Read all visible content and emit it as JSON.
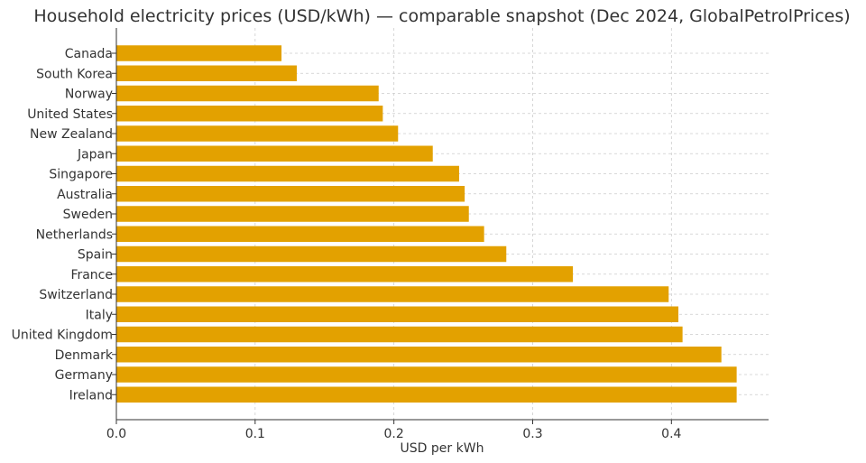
{
  "chart_data": {
    "type": "bar",
    "orientation": "horizontal",
    "title": "Household electricity prices (USD/kWh) — comparable snapshot (Dec 2024, GlobalPetrolPrices)",
    "xlabel": "USD per kWh",
    "ylabel": "",
    "xlim": [
      0,
      0.47
    ],
    "xticks": [
      0.0,
      0.1,
      0.2,
      0.3,
      0.4
    ],
    "xtick_labels": [
      "0.0",
      "0.1",
      "0.2",
      "0.3",
      "0.4"
    ],
    "grid": true,
    "bar_color": "#E3A100",
    "categories": [
      "Canada",
      "South Korea",
      "Norway",
      "United States",
      "New Zealand",
      "Japan",
      "Singapore",
      "Australia",
      "Sweden",
      "Netherlands",
      "Spain",
      "France",
      "Switzerland",
      "Italy",
      "United Kingdom",
      "Denmark",
      "Germany",
      "Ireland"
    ],
    "values": [
      0.119,
      0.13,
      0.189,
      0.192,
      0.203,
      0.228,
      0.247,
      0.251,
      0.254,
      0.265,
      0.281,
      0.329,
      0.398,
      0.405,
      0.408,
      0.436,
      0.447,
      0.447
    ]
  }
}
